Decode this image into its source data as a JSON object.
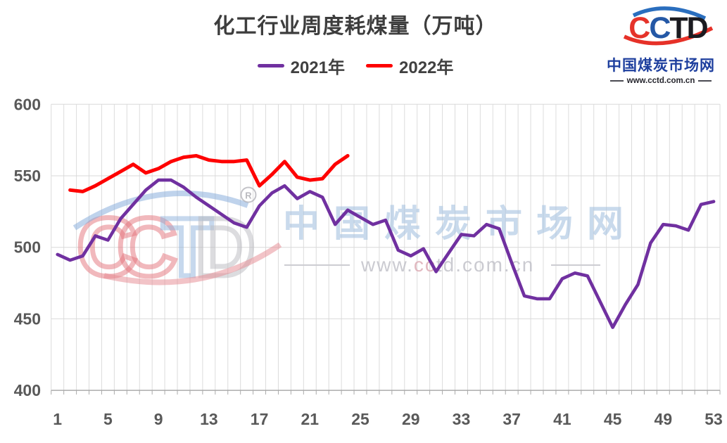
{
  "logo": {
    "brand_letters": [
      {
        "char": "C",
        "color": "#e5332a"
      },
      {
        "char": "C",
        "color": "#2458a6"
      },
      {
        "char": "T",
        "color": "#1b1b20"
      },
      {
        "char": "D",
        "color": "#1b1b20"
      }
    ],
    "site_name": "中国煤炭市场网",
    "url": "www.cctd.com.cn"
  },
  "watermark": {
    "brand_letters": [
      {
        "char": "C",
        "color": "#e5747c"
      },
      {
        "char": "C",
        "color": "#e5747c"
      },
      {
        "char": "T",
        "color": "#8fb3dc"
      },
      {
        "char": "D",
        "color": "#bbbbc1"
      }
    ],
    "registered_mark": "R",
    "site_name": "中国煤炭市场网",
    "url": "www.cctd.com.cn"
  },
  "chart_data": {
    "type": "line",
    "title": "化工行业周度耗煤量（万吨）",
    "xlabel": "",
    "ylabel": "",
    "x_range": [
      1,
      53
    ],
    "x_tick_labels": [
      1,
      5,
      9,
      13,
      17,
      21,
      25,
      29,
      33,
      37,
      41,
      45,
      49,
      53
    ],
    "ylim": [
      400,
      600
    ],
    "y_ticks": [
      400,
      450,
      500,
      550,
      600
    ],
    "grid": true,
    "legend_position": "top",
    "series": [
      {
        "name": "2021年",
        "color": "#7030a0",
        "start_week": 1,
        "values": [
          495,
          491,
          494,
          508,
          505,
          520,
          530,
          540,
          547,
          547,
          542,
          535,
          529,
          523,
          517,
          514,
          529,
          538,
          543,
          534,
          539,
          535,
          516,
          526,
          521,
          516,
          519,
          498,
          494,
          499,
          483,
          496,
          509,
          508,
          516,
          513,
          489,
          466,
          464,
          464,
          478,
          482,
          480,
          462,
          444,
          460,
          474,
          503,
          516,
          515,
          512,
          530,
          532
        ]
      },
      {
        "name": "2022年",
        "color": "#fe0000",
        "start_week": 2,
        "values": [
          540,
          539,
          543,
          548,
          553,
          558,
          552,
          555,
          560,
          563,
          564,
          561,
          560,
          560,
          561,
          543,
          551,
          560,
          549,
          547,
          548,
          558,
          564
        ]
      }
    ]
  }
}
